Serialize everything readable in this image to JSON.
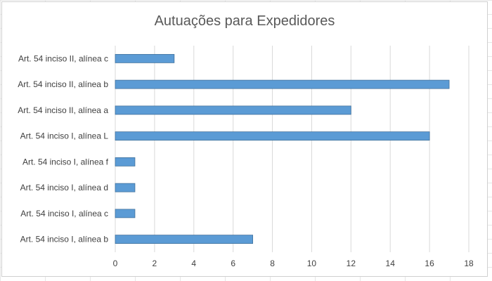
{
  "chart_data": {
    "type": "bar",
    "orientation": "horizontal",
    "title": "Autuações para Expedidores",
    "categories": [
      "Art. 54 inciso II, alínea c",
      "Art. 54 inciso II, alínea b",
      "Art. 54 inciso II, alínea a",
      "Art. 54 inciso I, alínea L",
      "Art. 54 inciso I, alínea f",
      "Art. 54 inciso I, alínea d",
      "Art. 54 inciso I, alínea c",
      "Art. 54 inciso I, alínea b"
    ],
    "values": [
      3,
      17,
      12,
      16,
      1,
      1,
      1,
      7
    ],
    "xlim": [
      0,
      18
    ],
    "xticks": [
      "0",
      "2",
      "4",
      "6",
      "8",
      "10",
      "12",
      "14",
      "16",
      "18"
    ],
    "grid": "vertical",
    "bar_color": "#5B9BD5",
    "bar_border_color": "#41719C",
    "gridline_color": "#D9D9D9"
  }
}
